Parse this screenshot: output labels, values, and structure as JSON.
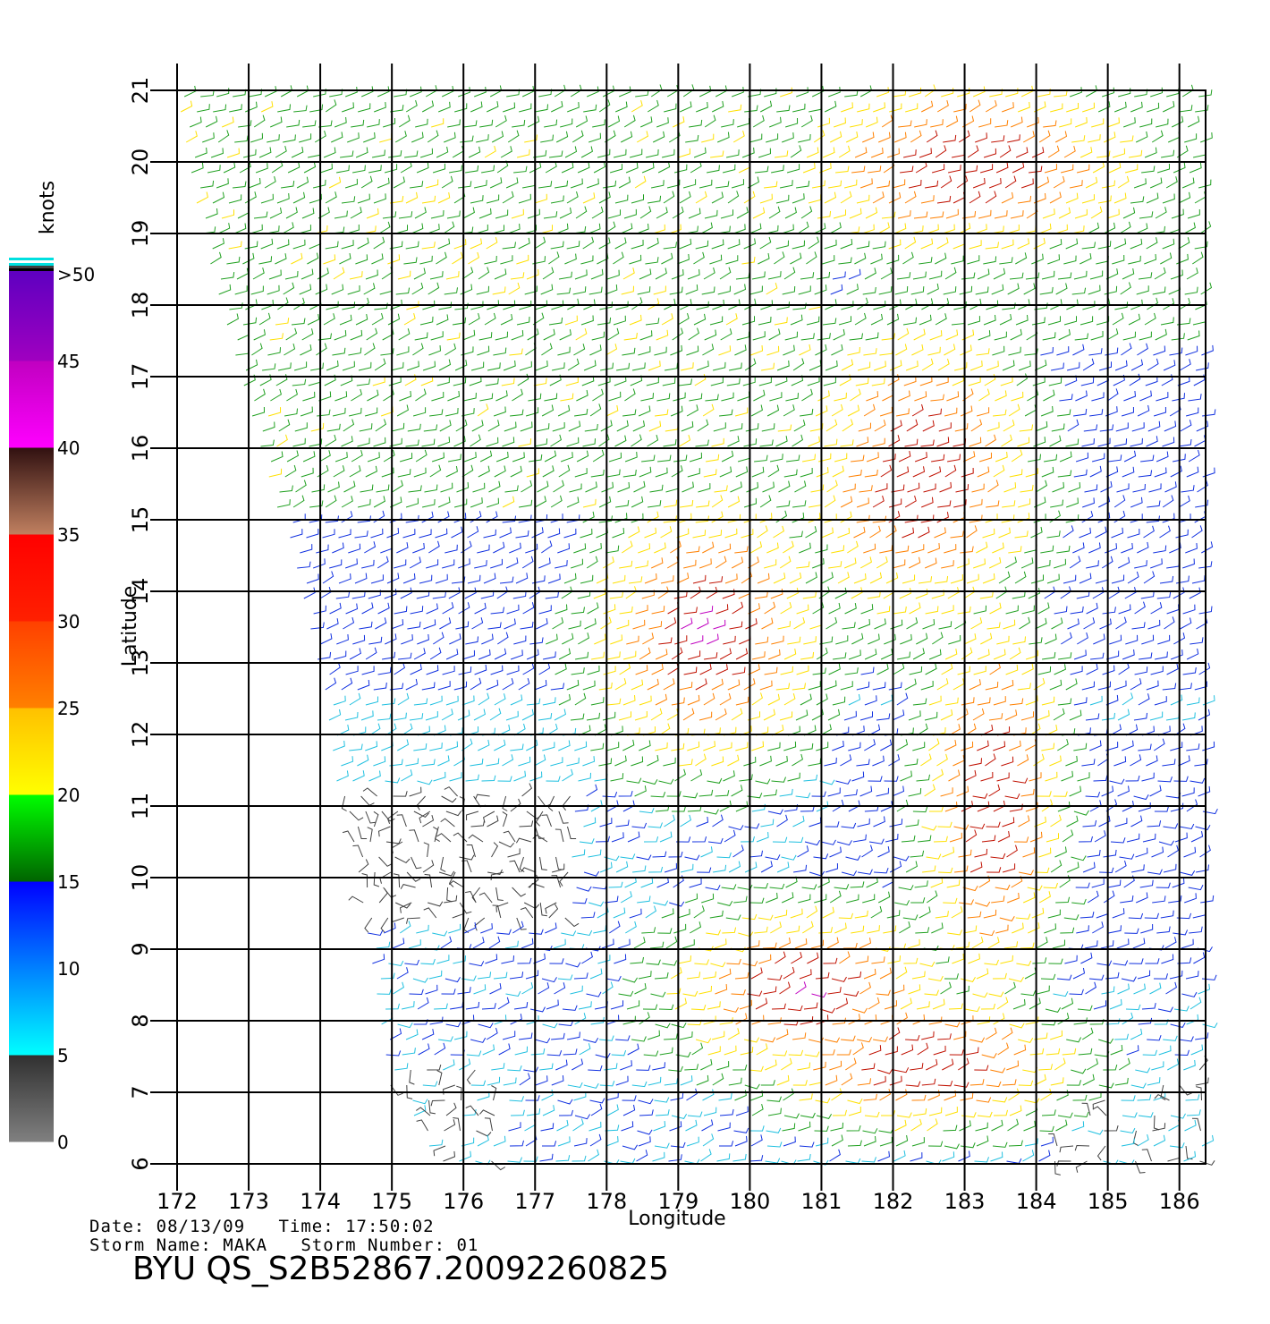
{
  "map": {
    "x_axis_label": "Longitude",
    "y_axis_label": "Latitude",
    "longitudes": [
      "172",
      "173",
      "174",
      "175",
      "176",
      "177",
      "178",
      "179",
      "180",
      "181",
      "182",
      "183",
      "184",
      "185",
      "186"
    ],
    "latitudes": [
      "6",
      "7",
      "8",
      "9",
      "10",
      "11",
      "12",
      "13",
      "14",
      "15",
      "16",
      "17",
      "18",
      "19",
      "20",
      "21"
    ]
  },
  "colorbar": {
    "unit_label": "knots",
    "tick_labels": [
      "0",
      "5",
      "10",
      "15",
      "20",
      "25",
      "30",
      "35",
      "40",
      "45",
      ">50"
    ],
    "segments": [
      {
        "from": 0,
        "to": 5,
        "colors": [
          "#808080",
          "#303030"
        ]
      },
      {
        "from": 5,
        "to": 10,
        "colors": [
          "#00ffff",
          "#0080ff"
        ]
      },
      {
        "from": 10,
        "to": 15,
        "colors": [
          "#0080ff",
          "#0000ff"
        ]
      },
      {
        "from": 15,
        "to": 20,
        "colors": [
          "#006400",
          "#00ff00"
        ]
      },
      {
        "from": 20,
        "to": 25,
        "colors": [
          "#ffff00",
          "#ffc000"
        ]
      },
      {
        "from": 25,
        "to": 30,
        "colors": [
          "#ff8000",
          "#ff4000"
        ]
      },
      {
        "from": 30,
        "to": 35,
        "colors": [
          "#ff2000",
          "#ff0000"
        ]
      },
      {
        "from": 35,
        "to": 40,
        "colors": [
          "#c08060",
          "#301010"
        ]
      },
      {
        "from": 40,
        "to": 45,
        "colors": [
          "#ff00ff",
          "#c000c0"
        ]
      },
      {
        "from": 45,
        "to": 50,
        "colors": [
          "#a000c0",
          "#6000c0"
        ]
      }
    ]
  },
  "info": {
    "line1": "Date: 08/13/09   Time: 17:50:02",
    "line2": "Storm Name: MAKA   Storm Number: 01",
    "title": "BYU QS_S2B52867.20092260825"
  },
  "wind_color_legend": {
    "calm": "#404040",
    "light": "#20c0e0",
    "moderate": "#1030e0",
    "fresh": "#20a020",
    "strong": "#ffe000",
    "gale": "#ff8000",
    "storm": "#c01000",
    "violent": "#c000c0"
  }
}
